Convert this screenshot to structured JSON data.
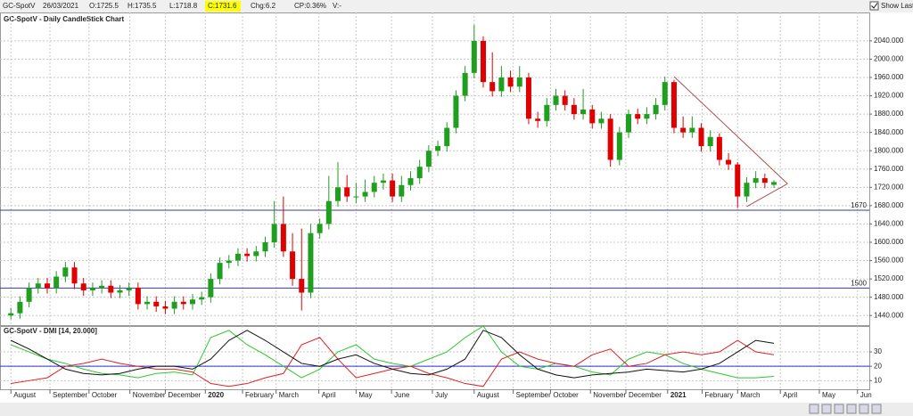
{
  "toolbar": {
    "symbol": "GC-SpotV",
    "date": "26/03/2021",
    "open": "O:1725.5",
    "high": "H:1735.5",
    "low": "L:1718.8",
    "close": "C:1731.6",
    "change": "Chg:6.2",
    "change_pct": "CP:0.36%",
    "volume": "V:-",
    "show_last": "Show Last"
  },
  "chart_data": {
    "type": "candlestick",
    "title": "GC-SpotV - Daily CandleStick Chart",
    "up_color": "#1f9e1f",
    "down_color": "#e00000",
    "grid": true,
    "xlim": [
      -1.2,
      94.5
    ],
    "xticks": [
      {
        "value": 0,
        "label": "August"
      },
      {
        "value": 4.3,
        "label": "September"
      },
      {
        "value": 8.6,
        "label": "October"
      },
      {
        "value": 13.1,
        "label": "November"
      },
      {
        "value": 17,
        "label": "December"
      },
      {
        "value": 21.4,
        "label": "2020"
      },
      {
        "value": 25.5,
        "label": "February"
      },
      {
        "value": 29.2,
        "label": "March"
      },
      {
        "value": 33.9,
        "label": "April"
      },
      {
        "value": 38,
        "label": "May"
      },
      {
        "value": 41.9,
        "label": "June"
      },
      {
        "value": 46.4,
        "label": "July"
      },
      {
        "value": 51,
        "label": "August"
      },
      {
        "value": 55.3,
        "label": "September"
      },
      {
        "value": 59.4,
        "label": "October"
      },
      {
        "value": 63.8,
        "label": "November"
      },
      {
        "value": 67.7,
        "label": "December"
      },
      {
        "value": 72.3,
        "label": "2021"
      },
      {
        "value": 76.1,
        "label": "February"
      },
      {
        "value": 80,
        "label": "March"
      },
      {
        "value": 84.7,
        "label": "April"
      },
      {
        "value": 89,
        "label": "May"
      },
      {
        "value": 93.2,
        "label": "Jun"
      }
    ],
    "ylim": [
      1419,
      2102
    ],
    "yticks": [
      {
        "value": 1440,
        "label": "1440.000"
      },
      {
        "value": 1480,
        "label": "1480.000"
      },
      {
        "value": 1520,
        "label": "1520.000"
      },
      {
        "value": 1560,
        "label": "1560.000"
      },
      {
        "value": 1600,
        "label": "1600.000"
      },
      {
        "value": 1640,
        "label": "1640.000"
      },
      {
        "value": 1680,
        "label": "1680.000"
      },
      {
        "value": 1720,
        "label": "1720.000"
      },
      {
        "value": 1760,
        "label": "1760.000"
      },
      {
        "value": 1800,
        "label": "1800.000"
      },
      {
        "value": 1840,
        "label": "1840.000"
      },
      {
        "value": 1880,
        "label": "1880.000"
      },
      {
        "value": 1920,
        "label": "1920.000"
      },
      {
        "value": 1960,
        "label": "1960.000"
      },
      {
        "value": 2000,
        "label": "2000.000"
      },
      {
        "value": 2040,
        "label": "2040.000"
      }
    ],
    "hlines": [
      1670,
      1500
    ],
    "hline_color": "#3a3aa0",
    "trendlines": [
      [
        [
          73,
          1962
        ],
        [
          85.5,
          1728
        ]
      ],
      [
        [
          81,
          1678
        ],
        [
          85.5,
          1728
        ]
      ]
    ],
    "trend_color": "#b05050",
    "open": [
      1440,
      1445,
      1470,
      1500,
      1510,
      1500,
      1525,
      1545,
      1510,
      1495,
      1500,
      1505,
      1490,
      1495,
      1500,
      1465,
      1470,
      1460,
      1455,
      1470,
      1465,
      1475,
      1480,
      1520,
      1555,
      1560,
      1575,
      1570,
      1580,
      1600,
      1640,
      1580,
      1520,
      1490,
      1620,
      1640,
      1690,
      1720,
      1700,
      1700,
      1710,
      1730,
      1735,
      1700,
      1725,
      1740,
      1765,
      1800,
      1810,
      1850,
      1920,
      1970,
      2040,
      1950,
      1930,
      1960,
      1940,
      1960,
      1870,
      1865,
      1900,
      1920,
      1900,
      1880,
      1890,
      1860,
      1870,
      1780,
      1840,
      1880,
      1870,
      1880,
      1900,
      1950,
      1850,
      1840,
      1850,
      1810,
      1830,
      1780,
      1770,
      1700,
      1730,
      1740,
      1725.5
    ],
    "high": [
      1457,
      1482,
      1512,
      1522,
      1522,
      1537,
      1557,
      1557,
      1522,
      1512,
      1517,
      1517,
      1507,
      1512,
      1512,
      1482,
      1482,
      1472,
      1482,
      1482,
      1487,
      1492,
      1532,
      1567,
      1572,
      1587,
      1587,
      1592,
      1612,
      1690,
      1700,
      1620,
      1630,
      1640,
      1652,
      1745,
      1775,
      1747,
      1730,
      1737,
      1745,
      1750,
      1750,
      1745,
      1755,
      1780,
      1812,
      1822,
      1862,
      1932,
      1985,
      2075,
      2050,
      2015,
      1985,
      1975,
      1985,
      1970,
      1885,
      1915,
      1935,
      1932,
      1915,
      1935,
      1900,
      1885,
      1880,
      1852,
      1890,
      1892,
      1895,
      1915,
      1962,
      1955,
      1875,
      1875,
      1860,
      1845,
      1838,
      1795,
      1775,
      1742,
      1755,
      1750,
      1735.5
    ],
    "low": [
      1432,
      1433,
      1458,
      1488,
      1488,
      1488,
      1513,
      1498,
      1483,
      1483,
      1488,
      1478,
      1478,
      1483,
      1453,
      1453,
      1448,
      1443,
      1443,
      1453,
      1453,
      1463,
      1468,
      1508,
      1543,
      1548,
      1558,
      1558,
      1568,
      1588,
      1568,
      1505,
      1451,
      1478,
      1608,
      1628,
      1678,
      1688,
      1685,
      1688,
      1698,
      1715,
      1688,
      1688,
      1713,
      1728,
      1753,
      1788,
      1798,
      1838,
      1908,
      1958,
      1938,
      1918,
      1918,
      1928,
      1928,
      1858,
      1850,
      1853,
      1888,
      1888,
      1868,
      1868,
      1848,
      1848,
      1765,
      1768,
      1828,
      1858,
      1858,
      1868,
      1888,
      1838,
      1828,
      1828,
      1798,
      1798,
      1768,
      1758,
      1675,
      1688,
      1718,
      1718,
      1718.8
    ],
    "close": [
      1445,
      1470,
      1500,
      1510,
      1500,
      1525,
      1545,
      1510,
      1495,
      1500,
      1505,
      1490,
      1495,
      1500,
      1465,
      1470,
      1460,
      1455,
      1470,
      1465,
      1475,
      1480,
      1520,
      1555,
      1560,
      1575,
      1570,
      1580,
      1600,
      1640,
      1580,
      1520,
      1490,
      1620,
      1640,
      1690,
      1720,
      1700,
      1700,
      1710,
      1730,
      1735,
      1700,
      1725,
      1740,
      1765,
      1800,
      1810,
      1850,
      1920,
      1970,
      2040,
      1950,
      1930,
      1960,
      1940,
      1960,
      1870,
      1865,
      1900,
      1920,
      1900,
      1880,
      1890,
      1860,
      1870,
      1780,
      1840,
      1880,
      1870,
      1880,
      1900,
      1950,
      1850,
      1840,
      1850,
      1810,
      1830,
      1780,
      1770,
      1700,
      1730,
      1740,
      1730,
      1731.6
    ],
    "indicator": {
      "type": "line",
      "title": "GC-SpotV - DMI [14, 20.000]",
      "ylim": [
        4,
        48
      ],
      "yticks": [
        10,
        20,
        30
      ],
      "level": 20,
      "level_color": "#3030d0",
      "x": [
        0,
        2,
        4,
        6,
        8,
        10,
        12,
        14,
        16,
        18,
        20,
        22,
        24,
        26,
        28,
        30,
        32,
        34,
        36,
        38,
        40,
        42,
        44,
        46,
        48,
        50,
        52,
        54,
        56,
        58,
        60,
        62,
        64,
        66,
        68,
        70,
        72,
        74,
        76,
        78,
        80,
        82,
        84
      ],
      "series": [
        {
          "color": "#2ec82e",
          "values": [
            35,
            30,
            25,
            22,
            18,
            15,
            14,
            12,
            15,
            16,
            14,
            40,
            45,
            35,
            28,
            20,
            12,
            18,
            30,
            35,
            25,
            22,
            20,
            25,
            30,
            40,
            48,
            30,
            20,
            18,
            22,
            20,
            16,
            14,
            25,
            30,
            28,
            22,
            18,
            15,
            12,
            12,
            13
          ]
        },
        {
          "color": "#e02020",
          "values": [
            8,
            10,
            12,
            20,
            22,
            25,
            22,
            20,
            18,
            18,
            16,
            8,
            6,
            8,
            12,
            15,
            35,
            40,
            25,
            12,
            15,
            18,
            20,
            15,
            12,
            8,
            6,
            25,
            30,
            25,
            22,
            20,
            28,
            32,
            20,
            22,
            28,
            30,
            28,
            30,
            38,
            30,
            28
          ]
        },
        {
          "color": "#111111",
          "values": [
            38,
            32,
            25,
            18,
            15,
            14,
            15,
            18,
            20,
            20,
            18,
            25,
            38,
            45,
            38,
            30,
            22,
            20,
            25,
            28,
            22,
            18,
            15,
            14,
            18,
            25,
            45,
            40,
            28,
            18,
            14,
            12,
            14,
            15,
            16,
            18,
            17,
            16,
            18,
            22,
            30,
            38,
            36
          ]
        }
      ]
    }
  }
}
